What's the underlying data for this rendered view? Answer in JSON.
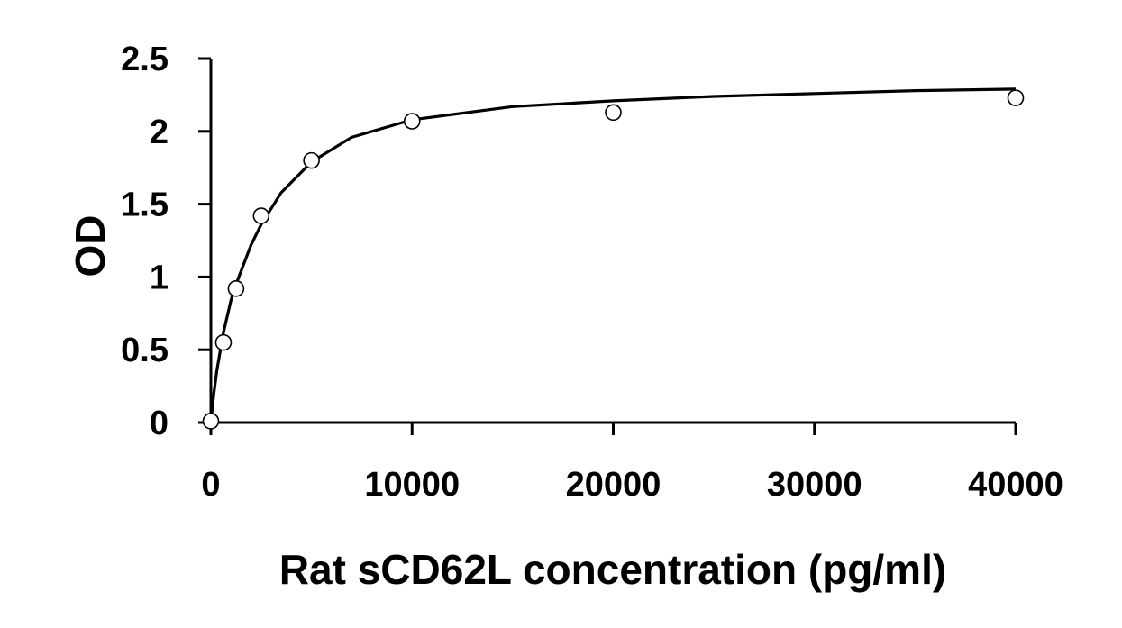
{
  "chart_data": {
    "type": "scatter",
    "title": "",
    "xlabel": "Rat sCD62L concentration (pg/ml)",
    "ylabel": "OD",
    "xlim": [
      0,
      40000
    ],
    "ylim": [
      0,
      2.5
    ],
    "xticks": [
      0,
      10000,
      20000,
      30000,
      40000
    ],
    "yticks": [
      0,
      0.5,
      1,
      1.5,
      2,
      2.5
    ],
    "xtick_labels": [
      "0",
      "10000",
      "20000",
      "30000",
      "40000"
    ],
    "ytick_labels": [
      "0",
      "0.5",
      "1",
      "1.5",
      "2",
      "2.5"
    ],
    "grid": false,
    "legend": "none",
    "series": [
      {
        "marker": "open-circle",
        "x": [
          0,
          625,
          1250,
          2500,
          5000,
          10000,
          20000,
          40000
        ],
        "y": [
          0.01,
          0.55,
          0.92,
          1.42,
          1.8,
          2.07,
          2.13,
          2.23
        ]
      }
    ],
    "fit_curve": {
      "x": [
        0,
        150,
        300,
        625,
        1000,
        1250,
        2000,
        2500,
        3500,
        5000,
        7000,
        10000,
        15000,
        20000,
        25000,
        30000,
        35000,
        40000
      ],
      "y": [
        0,
        0.2,
        0.36,
        0.62,
        0.84,
        0.95,
        1.22,
        1.36,
        1.58,
        1.79,
        1.96,
        2.08,
        2.17,
        2.21,
        2.24,
        2.26,
        2.28,
        2.29
      ]
    }
  }
}
